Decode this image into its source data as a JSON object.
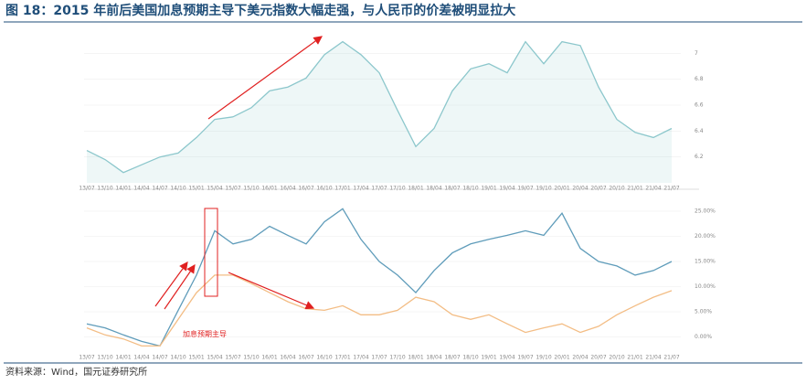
{
  "title": "图 18：2015 年前后美国加息预期主导下美元指数大幅走强，与人民币的价差被明显拉大",
  "source": "资料来源：Wind，国元证券研究所",
  "chart_data": [
    {
      "type": "line",
      "area": true,
      "grid": true,
      "categories": [
        "13/07",
        "13/10",
        "14/01",
        "14/04",
        "14/07",
        "14/10",
        "15/01",
        "15/04",
        "15/07",
        "15/10",
        "16/01",
        "16/04",
        "16/07",
        "16/10",
        "17/01",
        "17/04",
        "17/07",
        "17/10",
        "18/01",
        "18/04",
        "18/07",
        "18/10",
        "19/01",
        "19/04",
        "19/07",
        "19/10",
        "20/01",
        "20/04",
        "20/07",
        "20/10",
        "21/01",
        "21/04",
        "21/07"
      ],
      "series": [
        {
          "color": "#8cc7cc",
          "values": [
            6.25,
            6.18,
            6.08,
            6.14,
            6.2,
            6.23,
            6.35,
            6.49,
            6.51,
            6.58,
            6.71,
            6.74,
            6.81,
            6.99,
            7.09,
            6.99,
            6.85,
            6.56,
            6.28,
            6.42,
            6.71,
            6.88,
            6.92,
            6.85,
            7.09,
            6.92,
            7.09,
            7.06,
            6.74,
            6.49,
            6.39,
            6.35,
            6.42
          ]
        }
      ],
      "ylim": [
        6.0,
        7.2
      ],
      "yticks": [
        6.2,
        6.4,
        6.6,
        6.8,
        7.0
      ]
    },
    {
      "type": "line",
      "area": false,
      "grid": true,
      "categories": [
        "13/07",
        "13/10",
        "14/01",
        "14/04",
        "14/07",
        "14/10",
        "15/01",
        "15/04",
        "15/07",
        "15/10",
        "16/01",
        "16/04",
        "16/07",
        "16/10",
        "17/01",
        "17/04",
        "17/07",
        "17/10",
        "18/01",
        "18/04",
        "18/07",
        "18/10",
        "19/01",
        "19/04",
        "19/07",
        "19/10",
        "20/01",
        "20/04",
        "20/07",
        "20/10",
        "21/01",
        "21/04",
        "21/07"
      ],
      "series": [
        {
          "color": "#5f9cba",
          "values": [
            2.6,
            1.8,
            0.4,
            -0.9,
            -1.8,
            5.3,
            12.3,
            21.1,
            18.5,
            19.4,
            22.0,
            20.2,
            18.5,
            22.9,
            25.5,
            19.4,
            15.0,
            12.3,
            8.8,
            13.2,
            16.7,
            18.5,
            19.4,
            20.2,
            21.1,
            20.2,
            24.6,
            17.6,
            15.0,
            14.1,
            12.3,
            13.2,
            15.0
          ]
        },
        {
          "color": "#f3bd85",
          "values": [
            1.8,
            0.4,
            -0.4,
            -1.8,
            -1.8,
            3.5,
            8.8,
            12.3,
            12.3,
            10.6,
            8.8,
            7.0,
            5.6,
            5.3,
            6.2,
            4.4,
            4.4,
            5.3,
            7.9,
            7.0,
            4.4,
            3.5,
            4.4,
            2.6,
            0.9,
            1.8,
            2.6,
            0.9,
            2.1,
            4.4,
            6.2,
            7.9,
            9.2
          ]
        }
      ],
      "ylim": [
        -3,
        27
      ],
      "yticks": [
        {
          "value": 0,
          "label": "0.00%"
        },
        {
          "value": 5,
          "label": "5.00%"
        },
        {
          "value": 10,
          "label": "10.00%"
        },
        {
          "value": 15,
          "label": "15.00%"
        },
        {
          "value": 20,
          "label": "20.00%"
        },
        {
          "value": 25,
          "label": "25.00%"
        }
      ],
      "annotation": "加息预期主导"
    }
  ]
}
